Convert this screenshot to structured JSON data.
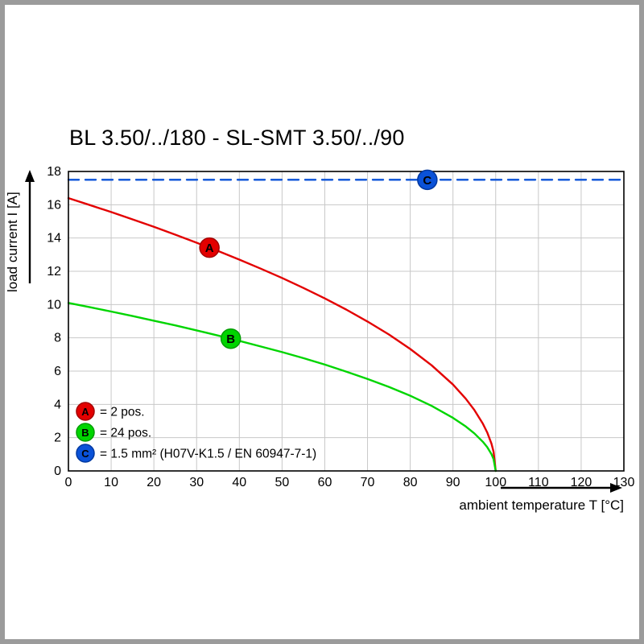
{
  "frame_color": "#9b9b9b",
  "chart_data": {
    "type": "line",
    "title": "BL 3.50/../180 - SL-SMT 3.50/../90",
    "xlabel": "ambient temperature T [°C]",
    "ylabel": "load current I [A]",
    "xlim": [
      0,
      130
    ],
    "ylim": [
      0,
      18
    ],
    "xticks": [
      0,
      10,
      20,
      30,
      40,
      50,
      60,
      70,
      80,
      90,
      100,
      110,
      120,
      130
    ],
    "yticks": [
      0,
      2,
      4,
      6,
      8,
      10,
      12,
      14,
      16,
      18
    ],
    "grid": true,
    "grid_color": "#c8c8c8",
    "legend_position": "bottom-left-inside",
    "series": [
      {
        "id": "A",
        "legend_label": "= 2 pos.",
        "color": "#e30000",
        "edge_color": "#a50000",
        "line_style": "solid",
        "marker_at": {
          "x": 33,
          "y": 13.42
        },
        "points": [
          [
            0,
            16.4
          ],
          [
            5,
            15.98
          ],
          [
            10,
            15.56
          ],
          [
            15,
            15.12
          ],
          [
            20,
            14.67
          ],
          [
            25,
            14.2
          ],
          [
            30,
            13.72
          ],
          [
            35,
            13.22
          ],
          [
            40,
            12.7
          ],
          [
            45,
            12.16
          ],
          [
            50,
            11.6
          ],
          [
            55,
            11.0
          ],
          [
            60,
            10.37
          ],
          [
            65,
            9.7
          ],
          [
            70,
            8.98
          ],
          [
            75,
            8.2
          ],
          [
            80,
            7.33
          ],
          [
            85,
            6.35
          ],
          [
            90,
            5.19
          ],
          [
            93,
            4.34
          ],
          [
            95,
            3.67
          ],
          [
            97,
            2.84
          ],
          [
            98,
            2.32
          ],
          [
            99,
            1.64
          ],
          [
            99.5,
            1.16
          ],
          [
            100,
            0
          ]
        ]
      },
      {
        "id": "B",
        "legend_label": "= 24 pos.",
        "color": "#00d500",
        "edge_color": "#009d00",
        "line_style": "solid",
        "marker_at": {
          "x": 38,
          "y": 7.95
        },
        "points": [
          [
            0,
            10.1
          ],
          [
            5,
            9.84
          ],
          [
            10,
            9.58
          ],
          [
            15,
            9.31
          ],
          [
            20,
            9.03
          ],
          [
            25,
            8.75
          ],
          [
            30,
            8.45
          ],
          [
            35,
            8.14
          ],
          [
            40,
            7.82
          ],
          [
            45,
            7.48
          ],
          [
            50,
            7.14
          ],
          [
            55,
            6.78
          ],
          [
            60,
            6.39
          ],
          [
            65,
            5.97
          ],
          [
            70,
            5.53
          ],
          [
            75,
            5.05
          ],
          [
            80,
            4.52
          ],
          [
            85,
            3.91
          ],
          [
            90,
            3.19
          ],
          [
            93,
            2.67
          ],
          [
            95,
            2.26
          ],
          [
            97,
            1.75
          ],
          [
            98,
            1.43
          ],
          [
            99,
            1.01
          ],
          [
            99.5,
            0.71
          ],
          [
            100,
            0
          ]
        ]
      },
      {
        "id": "C",
        "legend_label": "= 1.5 mm² (H07V-K1.5 / EN 60947-7-1)",
        "color": "#0a52d8",
        "edge_color": "#0038a0",
        "line_style": "dashed",
        "marker_at": {
          "x": 84,
          "y": 17.5
        },
        "points": [
          [
            0,
            17.5
          ],
          [
            130,
            17.5
          ]
        ]
      }
    ]
  }
}
